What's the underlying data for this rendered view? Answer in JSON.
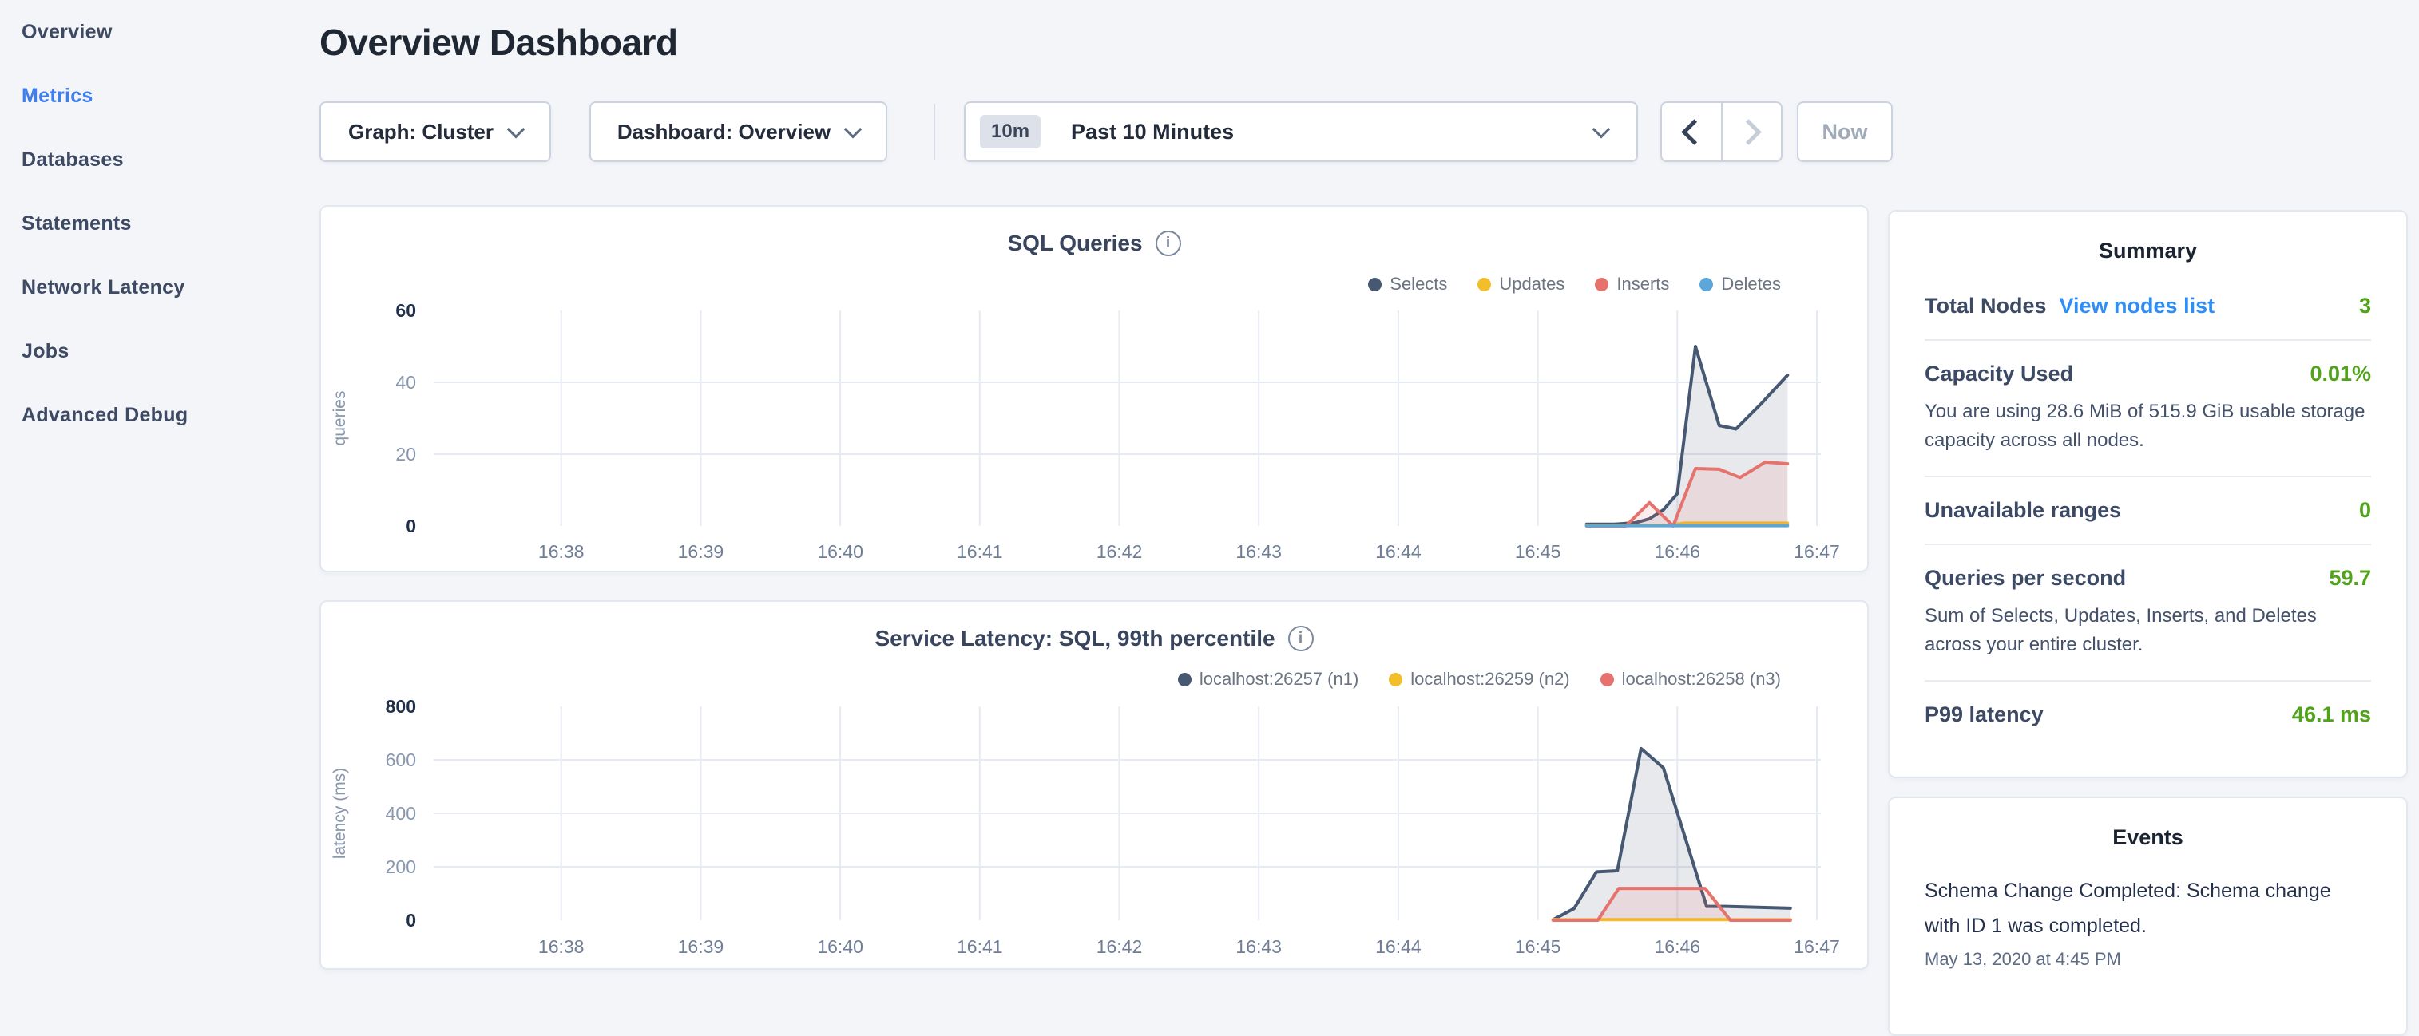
{
  "header": {
    "title": "Overview Dashboard"
  },
  "sidebar": {
    "items": [
      {
        "label": "Overview",
        "active": false
      },
      {
        "label": "Metrics",
        "active": true
      },
      {
        "label": "Databases",
        "active": false
      },
      {
        "label": "Statements",
        "active": false
      },
      {
        "label": "Network Latency",
        "active": false
      },
      {
        "label": "Jobs",
        "active": false
      },
      {
        "label": "Advanced Debug",
        "active": false
      }
    ]
  },
  "controls": {
    "graph_dropdown": "Graph: Cluster",
    "dashboard_dropdown": "Dashboard: Overview",
    "time_badge": "10m",
    "time_label": "Past 10 Minutes",
    "now_label": "Now"
  },
  "icons": {
    "info_glyph": "i"
  },
  "colors": {
    "page_bg": "#f3f5f9",
    "accent_blue": "#3d7ff0",
    "link_blue": "#2f8ef5",
    "status_green": "#52a31c",
    "series_navy": "#475872",
    "series_yellow": "#f2be2c",
    "series_red": "#e5726c",
    "series_blue": "#5ba7db"
  },
  "summary": {
    "title": "Summary",
    "rows": [
      {
        "label": "Total Nodes",
        "link": "View nodes list",
        "value": "3"
      },
      {
        "label": "Capacity Used",
        "value": "0.01%",
        "subtext": "You are using 28.6 MiB of 515.9 GiB usable storage capacity across all nodes."
      },
      {
        "label": "Unavailable ranges",
        "value": "0"
      },
      {
        "label": "Queries per second",
        "value": "59.7",
        "subtext": "Sum of Selects, Updates, Inserts, and Deletes across your entire cluster."
      },
      {
        "label": "P99 latency",
        "value": "46.1 ms"
      }
    ]
  },
  "events": {
    "title": "Events",
    "items": [
      {
        "text": "Schema Change Completed: Schema change with ID 1 was completed.",
        "timestamp": "May 13, 2020 at 4:45 PM"
      }
    ]
  },
  "chart_data": [
    {
      "type": "area",
      "title": "SQL Queries",
      "xlabel": "",
      "ylabel": "queries",
      "ylim": [
        0,
        60
      ],
      "yticks": [
        0,
        20,
        40,
        60
      ],
      "grid": true,
      "legend_position": "top-right",
      "x_ticks": [
        {
          "t": 38,
          "label": "16:38"
        },
        {
          "t": 39,
          "label": "16:39"
        },
        {
          "t": 40,
          "label": "16:40"
        },
        {
          "t": 41,
          "label": "16:41"
        },
        {
          "t": 42,
          "label": "16:42"
        },
        {
          "t": 43,
          "label": "16:43"
        },
        {
          "t": 44,
          "label": "16:44"
        },
        {
          "t": 45,
          "label": "16:45"
        },
        {
          "t": 46,
          "label": "16:46"
        },
        {
          "t": 47,
          "label": "16:47"
        }
      ],
      "series": [
        {
          "name": "Selects",
          "color": "#475872",
          "fill": "rgba(71,88,114,0.13)",
          "points": [
            [
              45.35,
              0.5
            ],
            [
              45.55,
              0.5
            ],
            [
              45.7,
              0.9
            ],
            [
              45.8,
              2
            ],
            [
              45.9,
              4.5
            ],
            [
              46.0,
              9
            ],
            [
              46.13,
              50
            ],
            [
              46.3,
              28
            ],
            [
              46.42,
              27
            ],
            [
              46.6,
              34
            ],
            [
              46.79,
              42
            ]
          ]
        },
        {
          "name": "Updates",
          "color": "#f2be2c",
          "fill": "rgba(242,190,44,0.13)",
          "points": [
            [
              45.35,
              0.2
            ],
            [
              45.95,
              0.2
            ],
            [
              46.05,
              0.8
            ],
            [
              46.79,
              0.8
            ]
          ]
        },
        {
          "name": "Inserts",
          "color": "#e5726c",
          "fill": "rgba(229,114,108,0.13)",
          "points": [
            [
              45.35,
              0
            ],
            [
              45.63,
              0
            ],
            [
              45.8,
              6.5
            ],
            [
              45.97,
              0
            ],
            [
              46.13,
              16
            ],
            [
              46.3,
              15.8
            ],
            [
              46.45,
              13.5
            ],
            [
              46.63,
              17.8
            ],
            [
              46.79,
              17.3
            ]
          ]
        },
        {
          "name": "Deletes",
          "color": "#5ba7db",
          "fill": "rgba(91,167,219,0.13)",
          "points": [
            [
              45.35,
              0.1
            ],
            [
              46.79,
              0.1
            ]
          ]
        }
      ]
    },
    {
      "type": "area",
      "title": "Service Latency: SQL, 99th percentile",
      "xlabel": "",
      "ylabel": "latency (ms)",
      "ylim": [
        0,
        800
      ],
      "yticks": [
        0,
        200,
        400,
        600,
        800
      ],
      "grid": true,
      "legend_position": "top-right",
      "x_ticks": [
        {
          "t": 38,
          "label": "16:38"
        },
        {
          "t": 39,
          "label": "16:39"
        },
        {
          "t": 40,
          "label": "16:40"
        },
        {
          "t": 41,
          "label": "16:41"
        },
        {
          "t": 42,
          "label": "16:42"
        },
        {
          "t": 43,
          "label": "16:43"
        },
        {
          "t": 44,
          "label": "16:44"
        },
        {
          "t": 45,
          "label": "16:45"
        },
        {
          "t": 46,
          "label": "16:46"
        },
        {
          "t": 47,
          "label": "16:47"
        }
      ],
      "series": [
        {
          "name": "localhost:26257 (n1)",
          "color": "#475872",
          "fill": "rgba(71,88,114,0.13)",
          "points": [
            [
              45.11,
              2
            ],
            [
              45.26,
              44
            ],
            [
              45.42,
              181
            ],
            [
              45.57,
              185
            ],
            [
              45.74,
              642
            ],
            [
              45.9,
              570
            ],
            [
              46.21,
              52
            ],
            [
              46.35,
              52
            ],
            [
              46.81,
              45
            ]
          ]
        },
        {
          "name": "localhost:26259 (n2)",
          "color": "#f2be2c",
          "fill": "rgba(242,190,44,0.13)",
          "points": [
            [
              45.11,
              2
            ],
            [
              46.81,
              2
            ]
          ]
        },
        {
          "name": "localhost:26258 (n3)",
          "color": "#e5726c",
          "fill": "rgba(229,114,108,0.13)",
          "points": [
            [
              45.11,
              0
            ],
            [
              45.43,
              0
            ],
            [
              45.58,
              119
            ],
            [
              46.2,
              119
            ],
            [
              46.38,
              0
            ],
            [
              46.81,
              0
            ]
          ]
        }
      ]
    }
  ]
}
